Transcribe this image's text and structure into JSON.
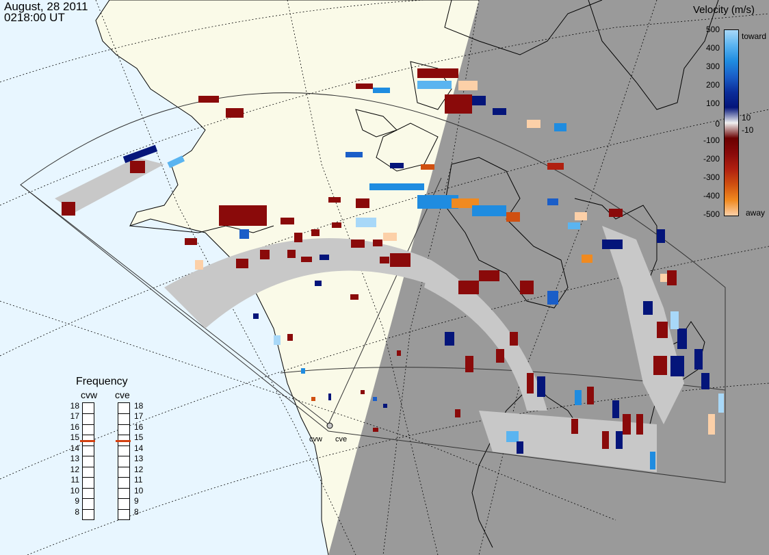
{
  "header": {
    "date": "August, 28 2011",
    "time": "0218:00 UT"
  },
  "velocity_scale": {
    "title": "Velocity (m/s)",
    "toward_label": "toward",
    "away_label": "away",
    "ticks": [
      "500",
      "400",
      "300",
      "200",
      "100",
      "10",
      "0",
      "-10",
      "-100",
      "-200",
      "-300",
      "-400",
      "-500"
    ],
    "colors": [
      "#a8d8f8",
      "#5ab4f0",
      "#1f8ce0",
      "#1a5ec8",
      "#0b2e9a",
      "#04157a",
      "#f0f0f0",
      "#6a0000",
      "#8a0a0a",
      "#b02010",
      "#d05010",
      "#f08a20",
      "#fcd0a8"
    ]
  },
  "frequency_panel": {
    "title": "Frequency",
    "radars": [
      "cvw",
      "cve"
    ],
    "ticks": [
      "18",
      "17",
      "16",
      "15",
      "14",
      "13",
      "12",
      "11",
      "10",
      "9",
      "8"
    ],
    "selected": [
      15,
      15
    ],
    "marker_color": "#d24010"
  },
  "radars": {
    "west": "cvw",
    "east": "cve"
  },
  "colors": {
    "ocean": "#e8f6ff",
    "land": "#fafae8",
    "night": "#9a9a9a",
    "ground_scatter": "#c8c8c8"
  }
}
